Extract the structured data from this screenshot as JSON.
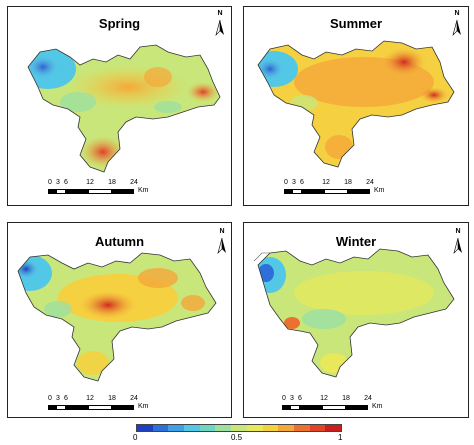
{
  "panels": [
    {
      "title": "Spring"
    },
    {
      "title": "Summer"
    },
    {
      "title": "Autumn"
    },
    {
      "title": "Winter"
    }
  ],
  "north_label": "N",
  "scale": {
    "ticks": [
      "0",
      "3",
      "6",
      "12",
      "18",
      "24"
    ],
    "unit": "Km"
  },
  "legend": {
    "min_label": "0",
    "mid_label": "0.5",
    "max_label": "1",
    "colors": [
      "#1d3fbf",
      "#2f6fd9",
      "#3fa0e8",
      "#52c8e6",
      "#6fd6c4",
      "#9ee0a0",
      "#c8e67a",
      "#e8e85a",
      "#f5d040",
      "#f5a83a",
      "#ee7030",
      "#e04428",
      "#c81e1e"
    ]
  }
}
